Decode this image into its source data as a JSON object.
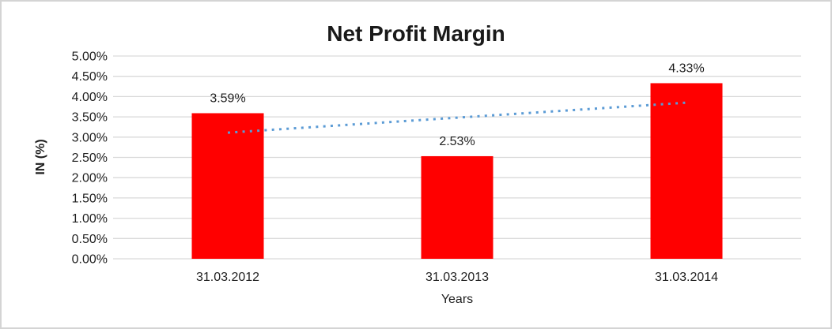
{
  "chart_data": {
    "type": "bar",
    "title": "Net Profit Margin",
    "xlabel": "Years",
    "ylabel": "IN (%)",
    "categories": [
      "31.03.2012",
      "31.03.2013",
      "31.03.2014"
    ],
    "values": [
      3.59,
      2.53,
      4.33
    ],
    "data_labels": [
      "3.59%",
      "2.53%",
      "4.33%"
    ],
    "ylim": [
      0,
      5
    ],
    "ytick_step": 0.5,
    "ytick_labels": [
      "0.00%",
      "0.50%",
      "1.00%",
      "1.50%",
      "2.00%",
      "2.50%",
      "3.00%",
      "3.50%",
      "4.00%",
      "4.50%",
      "5.00%"
    ],
    "grid": "horizontal",
    "legend": "none",
    "bar_color": "#ff0000",
    "gridline_color": "#d9d9d9",
    "text_color": "#1f1f1f",
    "frame_border_color": "#d4d4d4",
    "trendline": {
      "type": "linear",
      "style": "dotted",
      "color": "#5b9bd5",
      "start_value": 3.11,
      "end_value": 3.85
    }
  }
}
